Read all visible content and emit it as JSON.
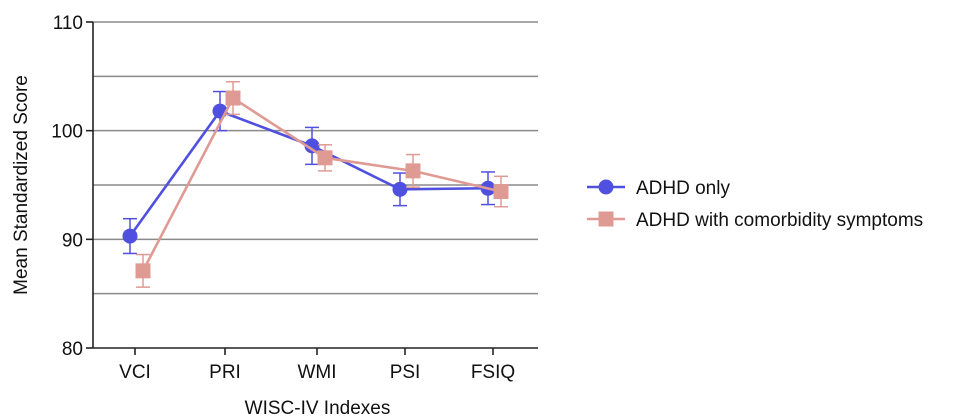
{
  "chart_data": {
    "type": "line",
    "title": "",
    "xlabel": "WISC-IV Indexes",
    "ylabel": "Mean Standardized Score",
    "categories": [
      "VCI",
      "PRI",
      "WMI",
      "PSI",
      "FSIQ"
    ],
    "ylim": [
      80,
      110
    ],
    "yticks": [
      80,
      90,
      100,
      110
    ],
    "gridlines": [
      85,
      90,
      95,
      100,
      105,
      110
    ],
    "grid": true,
    "legend_position": "right",
    "series": [
      {
        "name": "ADHD only",
        "marker": "circle",
        "color": "#5050e0",
        "values": [
          90.3,
          101.8,
          98.6,
          94.6,
          94.7
        ],
        "error": [
          1.6,
          1.8,
          1.7,
          1.5,
          1.5
        ]
      },
      {
        "name": "ADHD with comorbidity symptoms",
        "marker": "square",
        "color": "#e09a94",
        "values": [
          87.1,
          103.0,
          97.5,
          96.3,
          94.4
        ],
        "error": [
          1.5,
          1.5,
          1.2,
          1.5,
          1.4
        ]
      }
    ]
  }
}
